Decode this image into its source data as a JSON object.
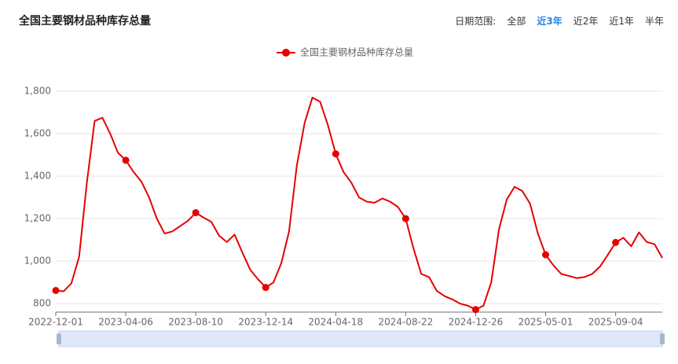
{
  "header": {
    "title": "全国主要钢材品种库存总量",
    "range_label": "日期范围:",
    "range_options": [
      "全部",
      "近3年",
      "近2年",
      "近1年",
      "半年"
    ],
    "active_range": 1
  },
  "chart_data": {
    "type": "line",
    "categories": [
      "2022-12-01",
      null,
      null,
      null,
      null,
      null,
      null,
      null,
      null,
      "2023-04-06",
      null,
      null,
      null,
      null,
      null,
      null,
      null,
      null,
      "2023-08-10",
      null,
      null,
      null,
      null,
      null,
      null,
      null,
      null,
      "2023-12-14",
      null,
      null,
      null,
      null,
      null,
      null,
      null,
      null,
      "2024-04-18",
      null,
      null,
      null,
      null,
      null,
      null,
      null,
      null,
      "2024-08-22",
      null,
      null,
      null,
      null,
      null,
      null,
      null,
      null,
      "2024-12-26",
      null,
      null,
      null,
      null,
      null,
      null,
      null,
      null,
      "2025-05-01",
      null,
      null,
      null,
      null,
      null,
      null,
      null,
      null,
      "2025-09-04",
      null,
      null,
      null,
      null,
      null,
      null
    ],
    "series": [
      {
        "name": "全国主要钢材品种库存总量",
        "color": "#e60000",
        "values": [
          862,
          858,
          895,
          1020,
          1370,
          1660,
          1675,
          1600,
          1510,
          1475,
          1420,
          1375,
          1300,
          1200,
          1130,
          1140,
          1165,
          1190,
          1228,
          1205,
          1185,
          1120,
          1090,
          1125,
          1040,
          960,
          915,
          876,
          900,
          990,
          1140,
          1450,
          1650,
          1770,
          1750,
          1640,
          1505,
          1420,
          1370,
          1300,
          1280,
          1275,
          1295,
          1280,
          1255,
          1200,
          1060,
          940,
          925,
          860,
          835,
          820,
          800,
          790,
          772,
          790,
          900,
          1150,
          1290,
          1350,
          1330,
          1270,
          1130,
          1030,
          980,
          940,
          930,
          920,
          925,
          940,
          975,
          1030,
          1088,
          1110,
          1070,
          1135,
          1090,
          1080,
          1015
        ]
      }
    ],
    "ylim": [
      760,
      1800
    ],
    "yticks": [
      800,
      {
        "value": 1000,
        "label": "1,000"
      },
      {
        "value": 1200,
        "label": "1,200"
      },
      {
        "value": 1400,
        "label": "1,400"
      },
      {
        "value": 1600,
        "label": "1,600"
      },
      {
        "value": 1800,
        "label": "1,800"
      }
    ],
    "grid": true
  }
}
